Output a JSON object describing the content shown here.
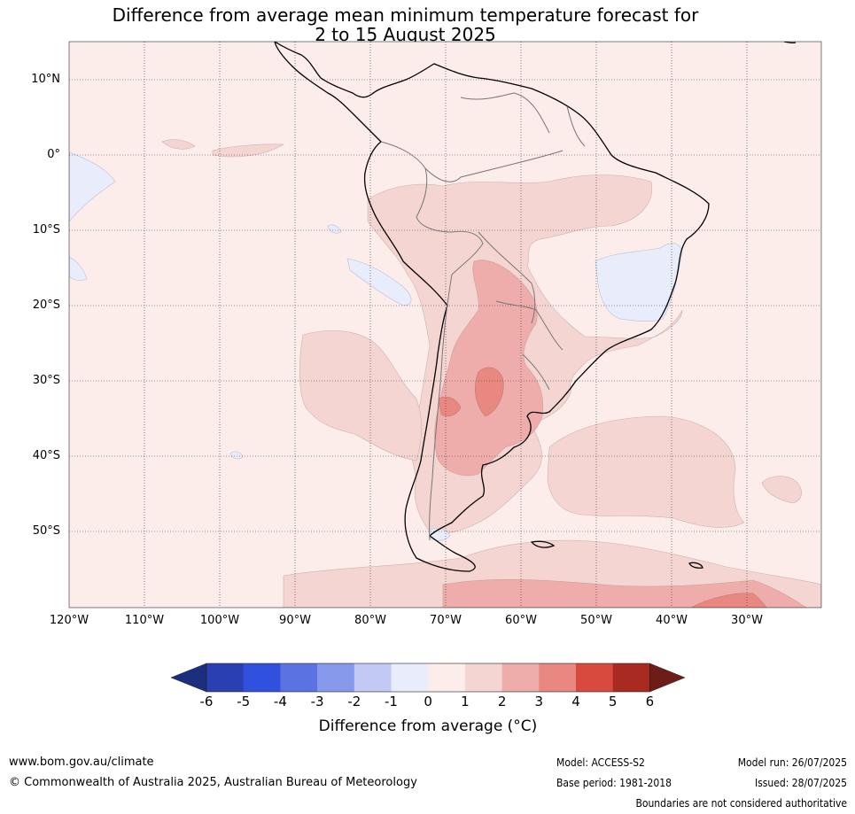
{
  "title_line1": "Difference from average mean minimum temperature forecast for",
  "title_line2": "2 to 15 August 2025",
  "map": {
    "lat_labels": [
      "10°N",
      "0°",
      "10°S",
      "20°S",
      "30°S",
      "40°S",
      "50°S"
    ],
    "lon_labels": [
      "120°W",
      "110°W",
      "100°W",
      "90°W",
      "80°W",
      "70°W",
      "60°W",
      "50°W",
      "40°W",
      "30°W"
    ],
    "colors": {
      "ocean_background": "#fcecea",
      "band_0_1": "#fcecea",
      "band_1_2": "#f5d5d2",
      "band_2_3": "#eeadaa",
      "band_3_4": "#e88880",
      "band_m1_0": "#e9edfb",
      "coastline": "#000000",
      "border": "#777777"
    }
  },
  "colorbar": {
    "ticks": [
      "-6",
      "-5",
      "-4",
      "-3",
      "-2",
      "-1",
      "0",
      "1",
      "2",
      "3",
      "4",
      "5",
      "6"
    ],
    "colors": [
      "#1c2e7e",
      "#2a3fb1",
      "#3050de",
      "#5b72e3",
      "#8799ea",
      "#c1c9f4",
      "#e9edfb",
      "#fcecea",
      "#f5d5d2",
      "#eeadaa",
      "#e88880",
      "#d84a3e",
      "#a82a20",
      "#6e1c18"
    ],
    "label": "Difference from average (°C)"
  },
  "footer": {
    "website": "www.bom.gov.au/climate",
    "copyright": "© Commonwealth of Australia 2025, Australian Bureau of Meteorology",
    "model": "Model: ACCESS-S2",
    "base_period": "Base period: 1981-2018",
    "model_run": "Model run: 26/07/2025",
    "issued": "Issued: 28/07/2025",
    "disclaimer": "Boundaries are not considered authoritative"
  }
}
